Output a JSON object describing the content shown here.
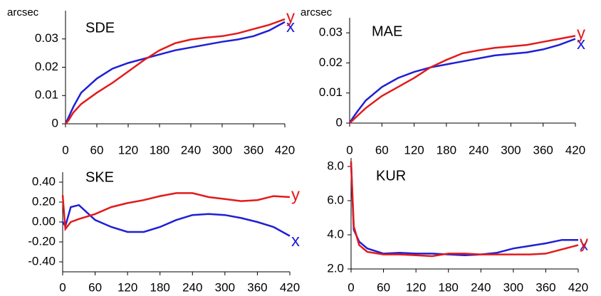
{
  "chart_data": [
    {
      "type": "line",
      "title": "SDE",
      "y_label": "arcsec",
      "x": [
        0,
        5,
        15,
        30,
        60,
        90,
        120,
        150,
        180,
        210,
        240,
        270,
        300,
        330,
        360,
        390,
        420
      ],
      "xlim": [
        0,
        420
      ],
      "xticks": [
        0,
        60,
        120,
        180,
        240,
        300,
        360,
        420
      ],
      "ylim": [
        0,
        0.04
      ],
      "yticks": [
        0,
        0.01,
        0.02,
        0.03
      ],
      "series": [
        {
          "name": "x",
          "color": "#1f1fd6",
          "values": [
            0,
            0.002,
            0.006,
            0.011,
            0.016,
            0.0195,
            0.0215,
            0.023,
            0.0245,
            0.026,
            0.027,
            0.028,
            0.029,
            0.0298,
            0.031,
            0.033,
            0.036
          ]
        },
        {
          "name": "y",
          "color": "#e31a1a",
          "values": [
            0,
            0.001,
            0.004,
            0.007,
            0.011,
            0.0145,
            0.0185,
            0.0225,
            0.026,
            0.0285,
            0.0298,
            0.0305,
            0.031,
            0.032,
            0.0335,
            0.035,
            0.037
          ]
        }
      ]
    },
    {
      "type": "line",
      "title": "MAE",
      "y_label": "arcsec",
      "x": [
        0,
        5,
        15,
        30,
        60,
        90,
        120,
        150,
        180,
        210,
        240,
        270,
        300,
        330,
        360,
        390,
        420
      ],
      "xlim": [
        0,
        420
      ],
      "xticks": [
        0,
        60,
        120,
        180,
        240,
        300,
        360,
        420
      ],
      "ylim": [
        0,
        0.035
      ],
      "yticks": [
        0,
        0.01,
        0.02,
        0.03
      ],
      "series": [
        {
          "name": "x",
          "color": "#1f1fd6",
          "values": [
            0,
            0.0015,
            0.004,
            0.0075,
            0.012,
            0.015,
            0.017,
            0.0185,
            0.0195,
            0.0205,
            0.0215,
            0.0225,
            0.023,
            0.0235,
            0.0245,
            0.026,
            0.028
          ]
        },
        {
          "name": "y",
          "color": "#e31a1a",
          "values": [
            0,
            0.0008,
            0.0025,
            0.005,
            0.009,
            0.012,
            0.015,
            0.0185,
            0.021,
            0.0232,
            0.0242,
            0.025,
            0.0255,
            0.026,
            0.027,
            0.028,
            0.029
          ]
        }
      ]
    },
    {
      "type": "line",
      "title": "SKE",
      "x": [
        0,
        5,
        15,
        30,
        60,
        90,
        120,
        150,
        180,
        210,
        240,
        270,
        300,
        330,
        360,
        390,
        420
      ],
      "xlim": [
        0,
        420
      ],
      "xticks": [
        0,
        60,
        120,
        180,
        240,
        300,
        360,
        420
      ],
      "ylim": [
        -0.5,
        0.5
      ],
      "yticks": [
        {
          "value": 0.4,
          "label": "0.40"
        },
        {
          "value": 0.2,
          "label": "0.20"
        },
        {
          "value": 0,
          "label": "0.00"
        },
        {
          "value": -0.2,
          "label": "-0.20"
        },
        {
          "value": -0.4,
          "label": "-0.40"
        }
      ],
      "series": [
        {
          "name": "x",
          "color": "#1f1fd6",
          "values": [
            0,
            -0.04,
            0.15,
            0.17,
            0.02,
            -0.05,
            -0.1,
            -0.1,
            -0.05,
            0.02,
            0.07,
            0.08,
            0.07,
            0.04,
            0,
            -0.05,
            -0.14
          ]
        },
        {
          "name": "y",
          "color": "#e31a1a",
          "values": [
            0.27,
            -0.07,
            0,
            0.03,
            0.08,
            0.15,
            0.19,
            0.22,
            0.26,
            0.29,
            0.29,
            0.25,
            0.23,
            0.21,
            0.22,
            0.26,
            0.25
          ]
        }
      ]
    },
    {
      "type": "line",
      "title": "KUR",
      "x": [
        0,
        5,
        15,
        30,
        60,
        90,
        120,
        150,
        180,
        210,
        240,
        270,
        300,
        330,
        360,
        390,
        420
      ],
      "xlim": [
        0,
        420
      ],
      "xticks": [
        0,
        60,
        120,
        180,
        240,
        300,
        360,
        420
      ],
      "ylim": [
        2,
        8.5
      ],
      "yticks": [
        {
          "value": 8,
          "label": "8.0"
        },
        {
          "value": 6,
          "label": "6.0"
        },
        {
          "value": 4,
          "label": "4.0"
        },
        {
          "value": 2,
          "label": "2.0"
        }
      ],
      "series": [
        {
          "name": "x",
          "color": "#1f1fd6",
          "values": [
            8.2,
            4.3,
            3.6,
            3.2,
            2.9,
            2.95,
            2.9,
            2.9,
            2.85,
            2.8,
            2.85,
            2.95,
            3.2,
            3.35,
            3.5,
            3.7,
            3.7
          ]
        },
        {
          "name": "y",
          "color": "#e31a1a",
          "values": [
            8.3,
            4.5,
            3.4,
            3.0,
            2.85,
            2.85,
            2.8,
            2.75,
            2.9,
            2.9,
            2.85,
            2.85,
            2.85,
            2.85,
            2.9,
            3.15,
            3.4
          ]
        }
      ]
    }
  ]
}
